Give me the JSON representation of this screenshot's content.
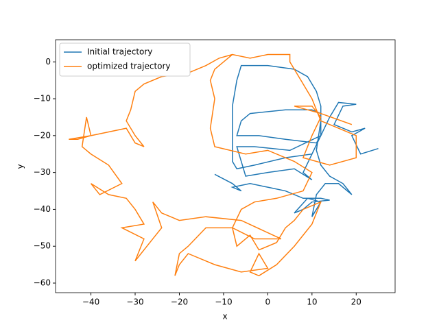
{
  "chart_data": {
    "type": "line",
    "xlabel": "x",
    "ylabel": "y",
    "xlim": [
      -48,
      28.8
    ],
    "ylim": [
      -62.6,
      6
    ],
    "xticks": [
      {
        "value": -40,
        "label": "−40"
      },
      {
        "value": -30,
        "label": "−30"
      },
      {
        "value": -20,
        "label": "−20"
      },
      {
        "value": -10,
        "label": "−10"
      },
      0,
      10,
      20
    ],
    "yticks": [
      0,
      {
        "value": -10,
        "label": "−10"
      },
      {
        "value": -20,
        "label": "−20"
      },
      {
        "value": -30,
        "label": "−30"
      },
      {
        "value": -40,
        "label": "−40"
      },
      {
        "value": -50,
        "label": "−50"
      },
      {
        "value": -60,
        "label": "−60"
      }
    ],
    "legend": "upper left",
    "series": [
      {
        "name": "Initial trajectory",
        "color": "#1f77b4",
        "x": [
          -12,
          -8,
          -6,
          -8,
          -4,
          0,
          4,
          6,
          8,
          12,
          14,
          10,
          8,
          6,
          9,
          12,
          10,
          11,
          13,
          16,
          19,
          17,
          14,
          12,
          11,
          12,
          12,
          11,
          9,
          6,
          0,
          -6,
          -7,
          -8,
          -8,
          -8,
          -7,
          -3,
          4,
          10,
          12,
          12,
          10,
          4,
          -4,
          -6,
          -7,
          -2,
          4,
          11,
          12,
          5,
          -3,
          -7,
          -5,
          0,
          6,
          10,
          8,
          14,
          16,
          20,
          17,
          15,
          19,
          22,
          19,
          21,
          25
        ],
        "values": [
          -30.5,
          -33,
          -35,
          -34,
          -33,
          -34,
          -35,
          -36,
          -37,
          -37,
          -37.5,
          -38,
          -40,
          -41,
          -37,
          -38,
          -42,
          -36,
          -33,
          -33,
          -36,
          -33,
          -31,
          -28,
          -24,
          -16,
          -12,
          -8,
          -4,
          -2,
          -1,
          -1,
          -5,
          -12,
          -20,
          -27,
          -29,
          -28,
          -26,
          -25,
          -20,
          -14,
          -13,
          -13,
          -14,
          -16,
          -20,
          -20,
          -21,
          -22,
          -20,
          -24,
          -23,
          -23,
          -31,
          -30,
          -29,
          -32,
          -30,
          -15,
          -11,
          -11.5,
          -12,
          -17,
          -19,
          -18,
          -20,
          -25,
          -23.5
        ]
      },
      {
        "name": "optimized trajectory",
        "color": "#ff7f0e",
        "x": [
          19,
          12,
          6,
          10,
          12,
          10,
          8,
          14,
          20,
          20,
          12,
          10,
          8,
          6,
          5,
          5,
          3,
          0,
          -4,
          -8,
          -10,
          -12,
          -13,
          -12,
          -13,
          -12,
          -5,
          0,
          6,
          10,
          8,
          2,
          -3,
          -6,
          -8,
          -7,
          -4,
          -2,
          2,
          4,
          6,
          8,
          12,
          10,
          6,
          2,
          -2,
          -4,
          -2,
          0,
          -6,
          -12,
          -18,
          -20,
          -21,
          -20,
          -18,
          -14,
          -8,
          -3,
          3,
          -6,
          -14,
          -20,
          -24,
          -26,
          -24,
          -26,
          -30,
          -28,
          -33,
          -28,
          -30,
          -32,
          -36,
          -40,
          -38,
          -33,
          -36,
          -40,
          -42,
          -41,
          -40,
          -43,
          -45,
          -40,
          -36,
          -32,
          -30,
          -28,
          -30,
          -32,
          -31,
          -30,
          -28,
          -24,
          -18,
          -14,
          -11,
          -8
        ],
        "values": [
          -17,
          -14,
          -12,
          -12,
          -15,
          -20,
          -26,
          -28,
          -26,
          -20,
          -16,
          -10,
          -6,
          -2,
          0,
          2,
          2,
          2,
          1,
          2,
          0,
          -2,
          -5,
          -10,
          -18,
          -23,
          -25,
          -24,
          -27,
          -30,
          -35,
          -37,
          -38,
          -40,
          -45,
          -50,
          -47,
          -51,
          -49,
          -45,
          -43,
          -40,
          -38,
          -44,
          -50,
          -55,
          -58,
          -57,
          -52,
          -56,
          -57,
          -55,
          -52,
          -55,
          -58,
          -52,
          -50,
          -45,
          -45,
          -48,
          -48,
          -43,
          -42,
          -43,
          -41,
          -38,
          -45,
          -48,
          -54,
          -48,
          -45,
          -44,
          -40,
          -37,
          -36,
          -33,
          -36,
          -33,
          -28,
          -25,
          -23,
          -15,
          -20,
          -21,
          -21,
          -20,
          -19,
          -18,
          -22,
          -23,
          -20,
          -16,
          -13,
          -8,
          -6,
          -4,
          -3,
          -1,
          1,
          2
        ]
      }
    ]
  }
}
